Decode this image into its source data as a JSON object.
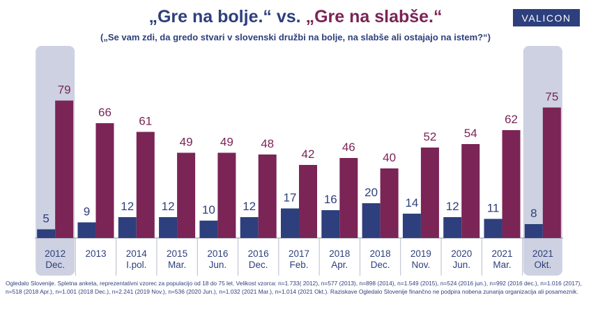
{
  "header": {
    "title_part1": "„Gre na bolje.“",
    "title_vs": " vs. ",
    "title_part2": "„Gre na slabše.“",
    "subtitle": "(„Se vam zdi, da gredo stvari v slovenski družbi na bolje, na slabše ali ostajajo na istem?“)",
    "logo_text": "VALICON"
  },
  "colors": {
    "better": "#2d3f7c",
    "worse": "#7b2456",
    "highlight": "#cdd1e1"
  },
  "chart_data": {
    "type": "bar",
    "categories": [
      {
        "line1": "2012",
        "line2": "Dec."
      },
      {
        "line1": "2013",
        "line2": ""
      },
      {
        "line1": "2014",
        "line2": "I.pol."
      },
      {
        "line1": "2015",
        "line2": "Mar."
      },
      {
        "line1": "2016",
        "line2": "Jun."
      },
      {
        "line1": "2016",
        "line2": "Dec."
      },
      {
        "line1": "2017",
        "line2": "Feb."
      },
      {
        "line1": "2018",
        "line2": "Apr."
      },
      {
        "line1": "2018",
        "line2": "Dec."
      },
      {
        "line1": "2019",
        "line2": "Nov."
      },
      {
        "line1": "2020",
        "line2": "Jun."
      },
      {
        "line1": "2021",
        "line2": "Mar."
      },
      {
        "line1": "2021",
        "line2": "Okt."
      }
    ],
    "series": [
      {
        "key": "better",
        "values": [
          5,
          9,
          12,
          12,
          10,
          12,
          17,
          16,
          20,
          14,
          12,
          11,
          8
        ]
      },
      {
        "key": "worse",
        "values": [
          79,
          66,
          61,
          49,
          49,
          48,
          42,
          46,
          40,
          52,
          54,
          62,
          75
        ]
      }
    ],
    "highlighted_categories": [
      0,
      12
    ],
    "ylim": [
      0,
      100
    ],
    "grid": false,
    "data_labels": true
  },
  "footnote": "Ogledalo Slovenije. Spletna anketa, reprezentativni vzorec za populacijo od 18 do 75 let. Velikost vzorca: n=1.733( 2012), n=577 (2013), n=898 (2014), n=1.549 (2015), n=524 (2016 jun.), n=992 (2016 dec.), n=1.016 (2017), n=518 (2018 Apr.), n=1.001 (2018 Dec.), n=2.241 (2019 Nov.), n=536 (2020 Jun.), n=1.032 (2021 Mar.), n=1.014 (2021 Okt.). Raziskave Ogledalo Slovenije finančno ne podpira nobena zunanja organizacija ali posameznik."
}
